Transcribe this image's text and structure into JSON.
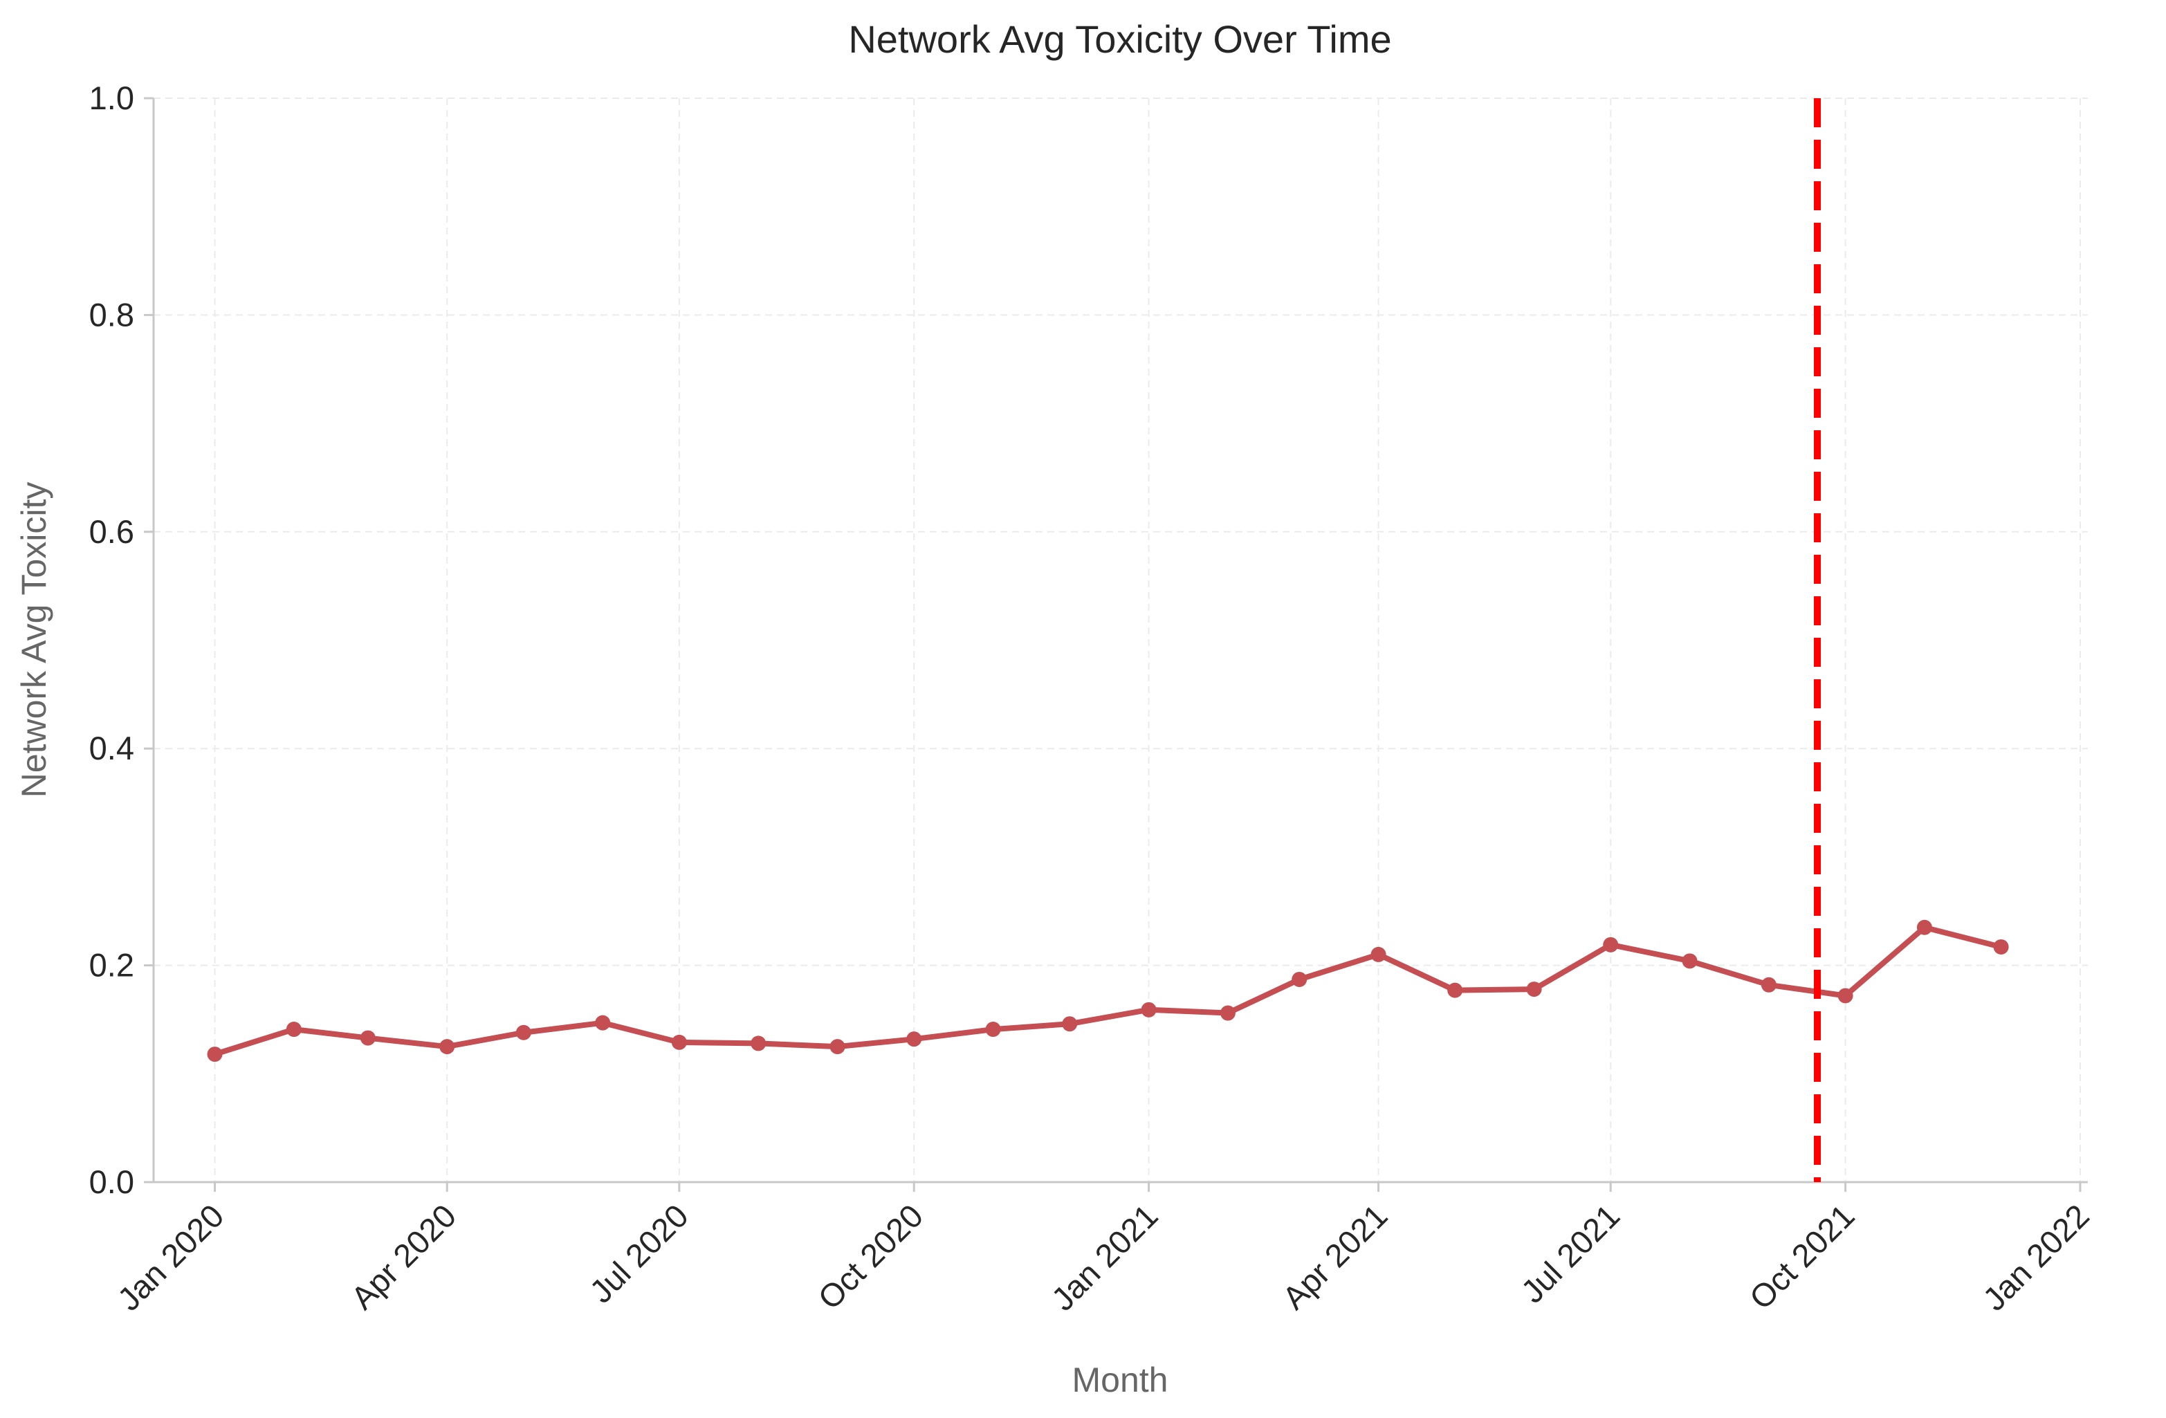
{
  "chart_data": {
    "type": "line",
    "title": "Network Avg Toxicity Over Time",
    "xlabel": "Month",
    "ylabel": "Network Avg Toxicity",
    "x_axis_type": "date",
    "xlim": [
      "2019-12-08",
      "2022-01-04"
    ],
    "ylim": [
      0,
      1
    ],
    "y_ticks": [
      {
        "value": 0,
        "label": "0.0"
      },
      {
        "value": 0.2,
        "label": "0.2"
      },
      {
        "value": 0.4,
        "label": "0.4"
      },
      {
        "value": 0.6,
        "label": "0.6"
      },
      {
        "value": 0.8,
        "label": "0.8"
      },
      {
        "value": 1,
        "label": "1.0"
      }
    ],
    "x_ticks": [
      {
        "date": "2020-01-01",
        "label": "Jan 2020"
      },
      {
        "date": "2020-04-01",
        "label": "Apr 2020"
      },
      {
        "date": "2020-07-01",
        "label": "Jul 2020"
      },
      {
        "date": "2020-10-01",
        "label": "Oct 2020"
      },
      {
        "date": "2021-01-01",
        "label": "Jan 2021"
      },
      {
        "date": "2021-04-01",
        "label": "Apr 2021"
      },
      {
        "date": "2021-07-01",
        "label": "Jul 2021"
      },
      {
        "date": "2021-10-01",
        "label": "Oct 2021"
      },
      {
        "date": "2022-01-01",
        "label": "Jan 2022"
      }
    ],
    "grid": true,
    "series": [
      {
        "color": "#c44e52",
        "points": [
          {
            "x": "2020-01-01",
            "y": 0.118
          },
          {
            "x": "2020-02-01",
            "y": 0.141
          },
          {
            "x": "2020-03-01",
            "y": 0.133
          },
          {
            "x": "2020-04-01",
            "y": 0.125
          },
          {
            "x": "2020-05-01",
            "y": 0.138
          },
          {
            "x": "2020-06-01",
            "y": 0.147
          },
          {
            "x": "2020-07-01",
            "y": 0.129
          },
          {
            "x": "2020-08-01",
            "y": 0.128
          },
          {
            "x": "2020-09-01",
            "y": 0.125
          },
          {
            "x": "2020-10-01",
            "y": 0.132
          },
          {
            "x": "2020-11-01",
            "y": 0.141
          },
          {
            "x": "2020-12-01",
            "y": 0.146
          },
          {
            "x": "2021-01-01",
            "y": 0.159
          },
          {
            "x": "2021-02-01",
            "y": 0.156
          },
          {
            "x": "2021-03-01",
            "y": 0.187
          },
          {
            "x": "2021-04-01",
            "y": 0.21
          },
          {
            "x": "2021-05-01",
            "y": 0.177
          },
          {
            "x": "2021-06-01",
            "y": 0.178
          },
          {
            "x": "2021-07-01",
            "y": 0.219
          },
          {
            "x": "2021-08-01",
            "y": 0.204
          },
          {
            "x": "2021-09-01",
            "y": 0.182
          },
          {
            "x": "2021-10-01",
            "y": 0.172
          },
          {
            "x": "2021-11-01",
            "y": 0.235
          },
          {
            "x": "2021-12-01",
            "y": 0.217
          }
        ]
      }
    ],
    "reference_line": {
      "orientation": "vertical",
      "x": "2021-09-20",
      "color": "#ff0000",
      "style": "dashed"
    }
  }
}
